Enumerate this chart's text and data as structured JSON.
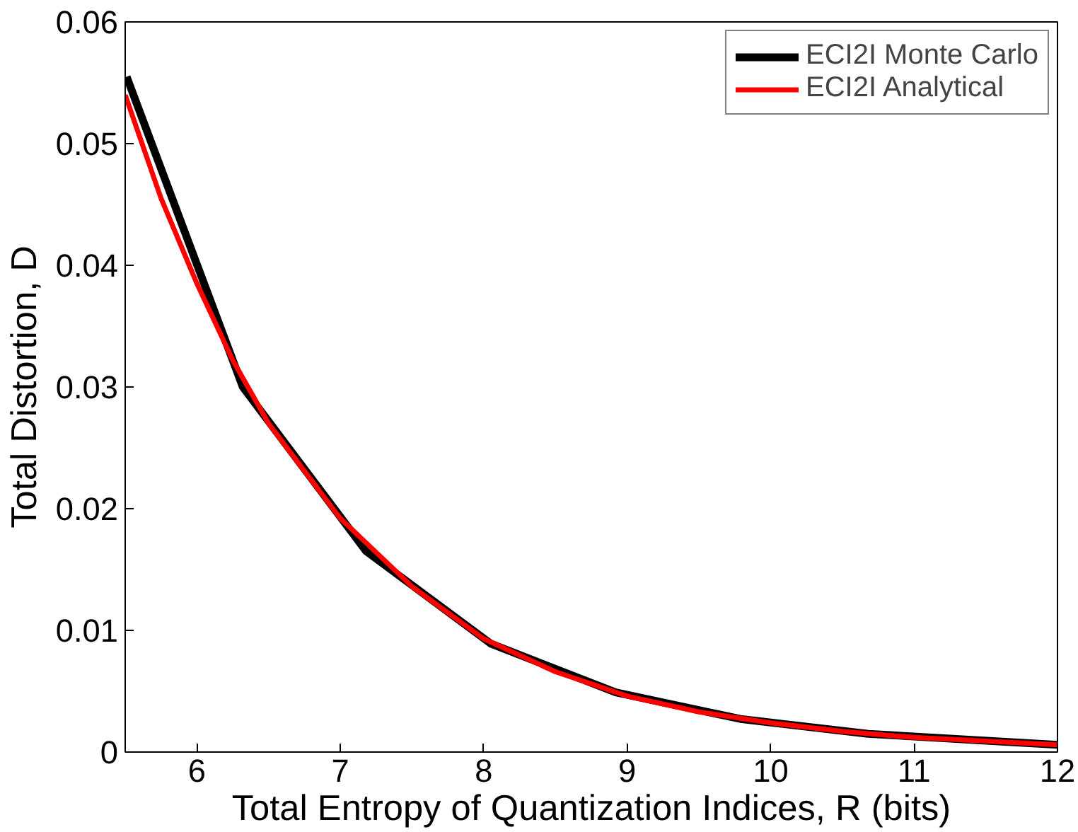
{
  "chart_data": {
    "type": "line",
    "xlabel": "Total Entropy of Quantization Indices, R (bits)",
    "ylabel": "Total Distortion, D",
    "xlim": [
      5.5,
      12
    ],
    "ylim": [
      0,
      0.06
    ],
    "xticks": [
      6,
      7,
      8,
      9,
      10,
      11,
      12
    ],
    "yticks": [
      0,
      0.01,
      0.02,
      0.03,
      0.04,
      0.05,
      0.06
    ],
    "grid": false,
    "legend": "top right",
    "line_style": "solid",
    "marker": "none",
    "series": [
      {
        "name": "ECI2I Monte Carlo",
        "color": "#000000",
        "x": [
          5.51,
          6.32,
          7.18,
          8.05,
          8.92,
          9.8,
          10.68,
          11.55,
          12
        ],
        "values": [
          0.0555,
          0.03,
          0.0165,
          0.0089,
          0.0049,
          0.0027,
          0.0015,
          0.0009,
          0.0006
        ]
      },
      {
        "name": "ECI2I Analytical",
        "color": "#ff0000",
        "x": [
          5.5,
          5.75,
          6,
          6.25,
          6.5,
          7,
          7.5,
          8,
          8.5,
          9,
          9.5,
          10,
          10.5,
          11,
          11.5,
          12
        ],
        "values": [
          0.054,
          0.0455,
          0.0385,
          0.0322,
          0.027,
          0.0192,
          0.0136,
          0.0093,
          0.0066,
          0.0046,
          0.0033,
          0.0024,
          0.0017,
          0.0012,
          0.0009,
          0.0006
        ]
      }
    ]
  }
}
